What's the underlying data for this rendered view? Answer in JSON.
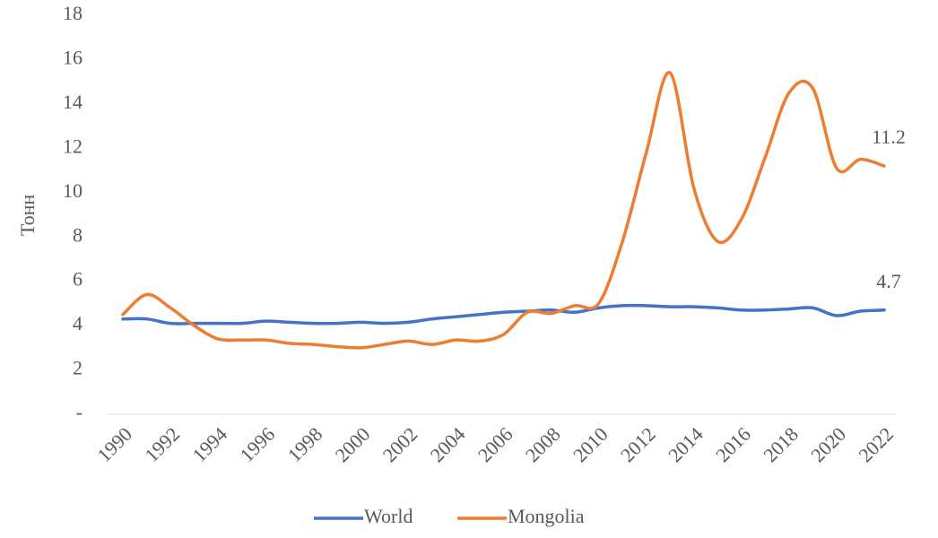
{
  "chart_data": {
    "type": "line",
    "y_label": "Тонн",
    "categories": [
      "1990",
      null,
      "1992",
      null,
      "1994",
      null,
      "1996",
      null,
      "1998",
      null,
      "2000",
      null,
      "2002",
      null,
      "2004",
      null,
      "2006",
      null,
      "2008",
      null,
      "2010",
      null,
      "2012",
      null,
      "2014",
      null,
      "2016",
      null,
      "2018",
      null,
      "2020",
      null,
      "2022"
    ],
    "series": [
      {
        "name": "World",
        "color": "#4472c4",
        "values": [
          4.3,
          4.3,
          4.1,
          4.1,
          4.1,
          4.1,
          4.2,
          4.15,
          4.1,
          4.1,
          4.15,
          4.1,
          4.15,
          4.3,
          4.4,
          4.5,
          4.6,
          4.65,
          4.7,
          4.6,
          4.8,
          4.9,
          4.9,
          4.85,
          4.85,
          4.8,
          4.7,
          4.7,
          4.75,
          4.8,
          4.45,
          4.65,
          4.7
        ],
        "value_labels": [
          null,
          null,
          null,
          null,
          null,
          null,
          null,
          null,
          null,
          null,
          null,
          null,
          null,
          null,
          null,
          null,
          null,
          null,
          null,
          null,
          null,
          null,
          null,
          null,
          null,
          null,
          null,
          null,
          null,
          null,
          null,
          null,
          "4.7"
        ]
      },
      {
        "name": "Mongolia",
        "color": "#ed7d31",
        "values": [
          4.5,
          5.4,
          4.8,
          4.0,
          3.4,
          3.35,
          3.35,
          3.2,
          3.15,
          3.05,
          3.0,
          3.15,
          3.3,
          3.15,
          3.35,
          3.3,
          3.6,
          4.6,
          4.55,
          4.9,
          5.0,
          7.8,
          11.8,
          15.4,
          10.2,
          7.8,
          8.8,
          11.6,
          14.5,
          14.7,
          11.1,
          11.5,
          11.2
        ],
        "value_labels": [
          null,
          null,
          null,
          null,
          null,
          null,
          null,
          null,
          null,
          null,
          null,
          null,
          null,
          null,
          null,
          null,
          null,
          null,
          null,
          null,
          null,
          null,
          null,
          null,
          null,
          null,
          null,
          null,
          null,
          null,
          null,
          null,
          "11.2"
        ]
      }
    ],
    "ylim": [
      0,
      18
    ],
    "yticks": [
      {
        "value": 0,
        "label": "-"
      },
      2,
      4,
      6,
      8,
      10,
      12,
      14,
      16,
      18
    ],
    "grid": false,
    "legend": "bottom"
  }
}
